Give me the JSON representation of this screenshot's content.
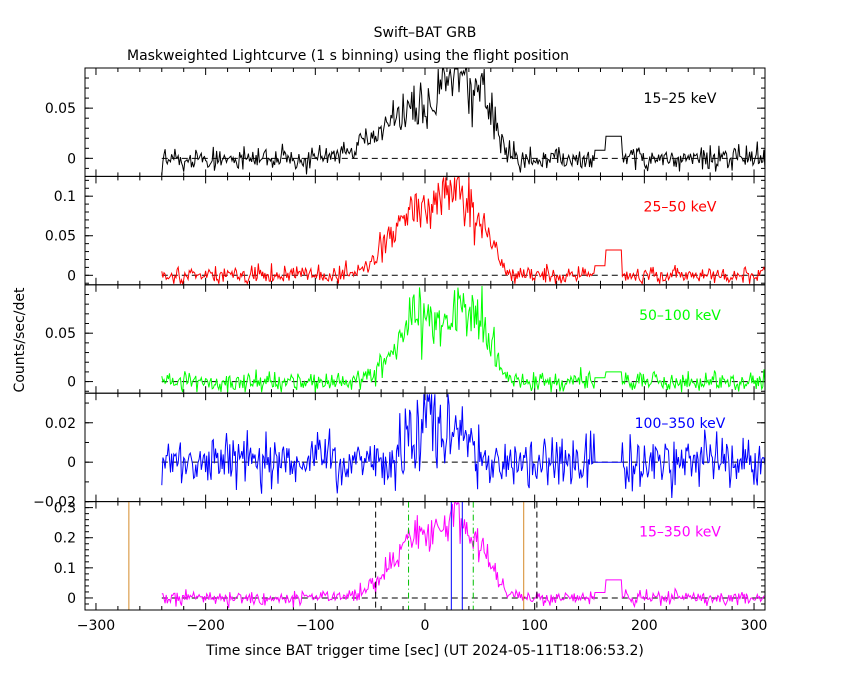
{
  "chart_data": {
    "type": "line",
    "title": "Swift–BAT GRB",
    "subtitle": "Maskweighted Lightcurve (1 s binning) using the flight position",
    "xlabel": "Time since BAT trigger time [sec] (UT 2024-05-11T18:06:53.2)",
    "ylabel": "Counts/sec/det",
    "xlim": [
      -310,
      310
    ],
    "xticks": [
      -300,
      -200,
      -100,
      0,
      100,
      200,
      300
    ],
    "xtick_labels": [
      "−300",
      "−200",
      "−100",
      "0",
      "100",
      "200",
      "300"
    ],
    "data_x_range": [
      -240,
      310
    ],
    "gap": [
      155,
      180
    ],
    "panels": [
      {
        "band": "15–25 keV",
        "color": "#000000",
        "ylim": [
          -0.018,
          0.09
        ],
        "yticks": [
          0,
          0.05
        ],
        "ytick_labels": [
          "0",
          "0.05"
        ],
        "noise": 0.0055,
        "peaks": [
          {
            "t": -10,
            "a": 0.045,
            "w": 30
          },
          {
            "t": 30,
            "a": 0.06,
            "w": 14
          },
          {
            "t": 55,
            "a": 0.045,
            "w": 12
          }
        ],
        "gap_level": 0.008,
        "gap_step": 0.022
      },
      {
        "band": "25–50 keV",
        "color": "#ff0000",
        "ylim": [
          -0.012,
          0.125
        ],
        "yticks": [
          0,
          0.05,
          0.1
        ],
        "ytick_labels": [
          "0",
          "0.05",
          "0.1"
        ],
        "noise": 0.0055,
        "peaks": [
          {
            "t": -5,
            "a": 0.085,
            "w": 25
          },
          {
            "t": 30,
            "a": 0.08,
            "w": 12
          },
          {
            "t": 55,
            "a": 0.05,
            "w": 10
          }
        ],
        "gap_level": 0.012,
        "gap_step": 0.032
      },
      {
        "band": "50–100 keV",
        "color": "#00ff00",
        "ylim": [
          -0.012,
          0.1
        ],
        "yticks": [
          0,
          0.05
        ],
        "ytick_labels": [
          "0",
          "0.05"
        ],
        "noise": 0.0055,
        "peaks": [
          {
            "t": -5,
            "a": 0.065,
            "w": 22
          },
          {
            "t": 35,
            "a": 0.06,
            "w": 10
          },
          {
            "t": 55,
            "a": 0.04,
            "w": 10
          }
        ],
        "gap_level": 0.004,
        "gap_step": 0.01
      },
      {
        "band": "100–350 keV",
        "color": "#0000ff",
        "ylim": [
          -0.02,
          0.035
        ],
        "yticks": [
          -0.02,
          0,
          0.02
        ],
        "ytick_labels": [
          "−0.02",
          "0",
          "0.02"
        ],
        "noise": 0.0065,
        "peaks": [
          {
            "t": 0,
            "a": 0.022,
            "w": 12
          },
          {
            "t": 35,
            "a": 0.012,
            "w": 10
          }
        ],
        "gap_level": 0.0,
        "gap_step": 0.0
      },
      {
        "band": "15–350 keV",
        "color": "#ff00ff",
        "ylim": [
          -0.04,
          0.32
        ],
        "yticks": [
          0,
          0.1,
          0.2,
          0.3
        ],
        "ytick_labels": [
          "0",
          "0.1",
          "0.2",
          "0.3"
        ],
        "noise": 0.012,
        "peaks": [
          {
            "t": -5,
            "a": 0.2,
            "w": 25
          },
          {
            "t": 30,
            "a": 0.2,
            "w": 12
          },
          {
            "t": 55,
            "a": 0.12,
            "w": 10
          }
        ],
        "gap_level": 0.018,
        "gap_step": 0.06,
        "markers": [
          {
            "t": -270,
            "color": "#d58a2a",
            "style": "solid"
          },
          {
            "t": 90,
            "color": "#d58a2a",
            "style": "solid"
          },
          {
            "t": -45,
            "color": "#000000",
            "style": "dashed"
          },
          {
            "t": 102,
            "color": "#000000",
            "style": "dashed"
          },
          {
            "t": -15,
            "color": "#00c000",
            "style": "dashdot"
          },
          {
            "t": 44,
            "color": "#00c000",
            "style": "dashdot"
          },
          {
            "t": 24,
            "color": "#0000ff",
            "style": "solid"
          },
          {
            "t": 34,
            "color": "#0000ff",
            "style": "solid"
          }
        ]
      }
    ]
  }
}
